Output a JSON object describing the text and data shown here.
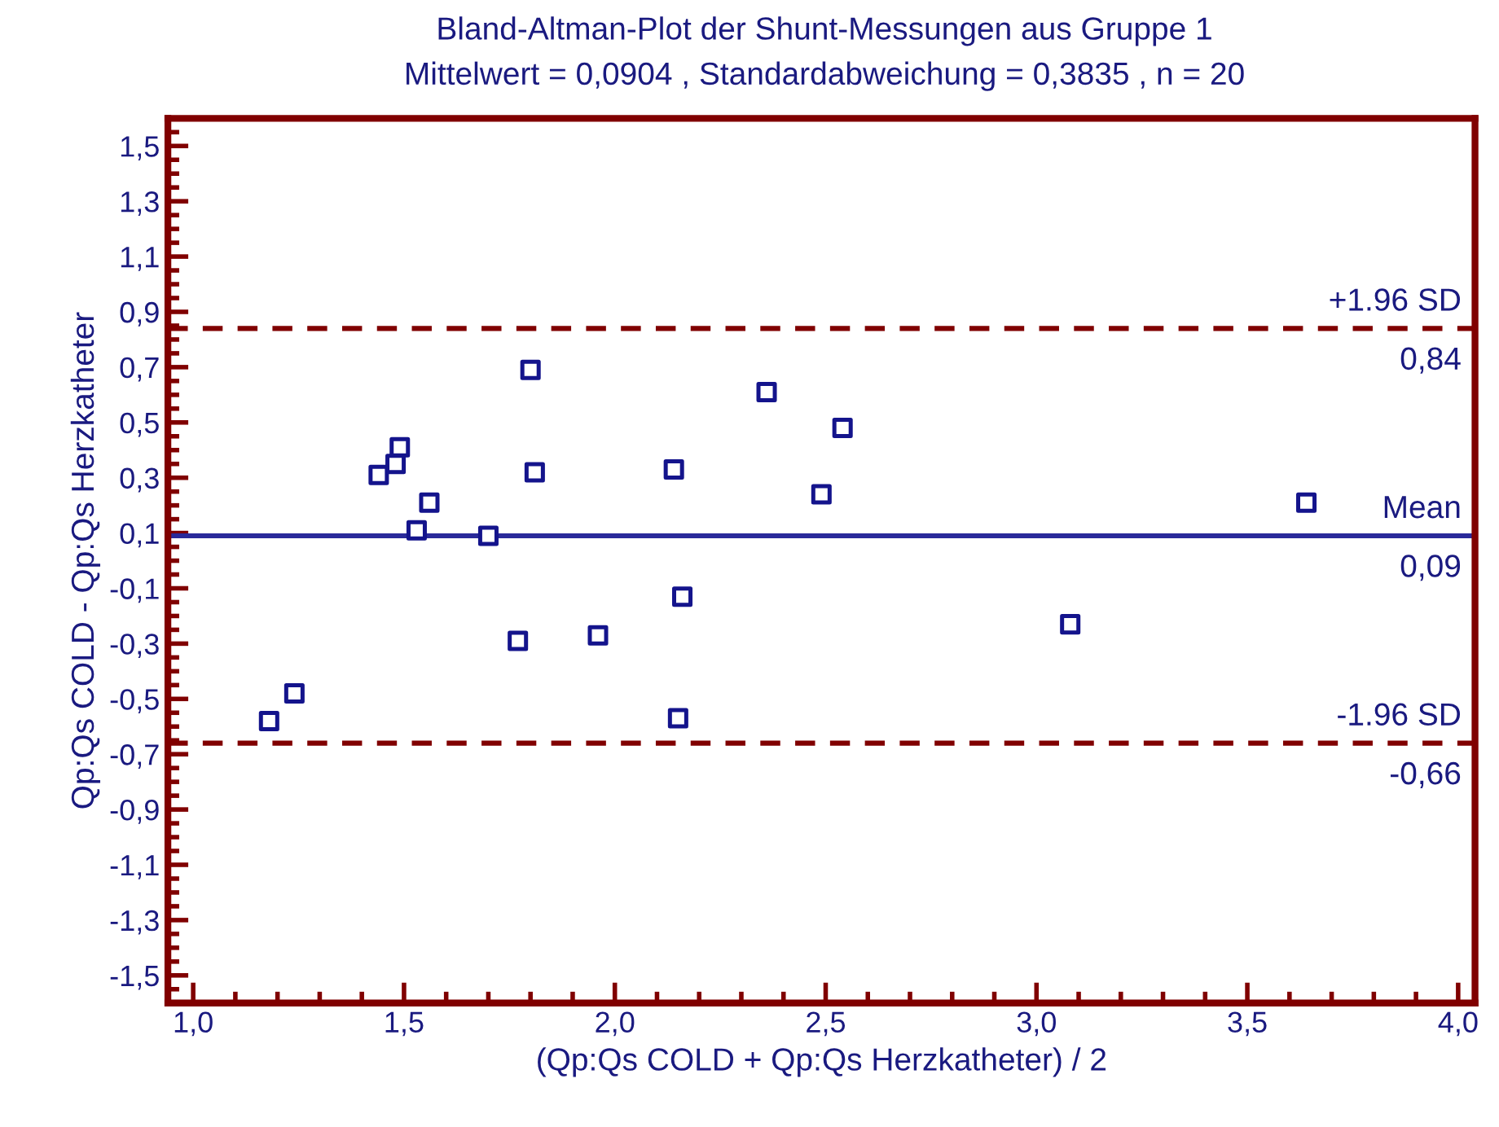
{
  "chart_data": {
    "type": "scatter",
    "title": "Bland-Altman-Plot der Shunt-Messungen aus Gruppe 1",
    "subtitle": "Mittelwert = 0,0904 , Standardabweichung = 0,3835 , n = 20",
    "xlabel": "(Qp:Qs COLD + Qp:Qs Herzkatheter) / 2",
    "ylabel": "Qp:Qs COLD - Qp:Qs Herzkatheter",
    "x": [
      1.18,
      1.24,
      1.44,
      1.48,
      1.49,
      1.56,
      1.53,
      1.7,
      1.8,
      1.81,
      1.77,
      1.96,
      2.14,
      2.16,
      2.15,
      2.36,
      2.49,
      2.54,
      3.08,
      3.64
    ],
    "series": [
      {
        "color": "#14148c",
        "values": [
          -0.58,
          -0.48,
          0.31,
          0.35,
          0.41,
          0.21,
          0.11,
          0.09,
          0.69,
          0.32,
          -0.29,
          -0.27,
          0.33,
          -0.13,
          -0.57,
          0.61,
          0.24,
          0.48,
          -0.23,
          0.21
        ]
      }
    ],
    "marker": "square",
    "xlim": [
      0.94,
      4.04
    ],
    "ylim": [
      -1.6,
      1.6
    ],
    "xticks": [
      {
        "value": 1.0,
        "label": "1,0"
      },
      {
        "value": 1.5,
        "label": "1,5"
      },
      {
        "value": 2.0,
        "label": "2,0"
      },
      {
        "value": 2.5,
        "label": "2,5"
      },
      {
        "value": 3.0,
        "label": "3,0"
      },
      {
        "value": 3.5,
        "label": "3,5"
      },
      {
        "value": 4.0,
        "label": "4,0"
      }
    ],
    "yticks": [
      {
        "value": -1.5,
        "label": "-1,5"
      },
      {
        "value": -1.3,
        "label": "-1,3"
      },
      {
        "value": -1.1,
        "label": "-1,1"
      },
      {
        "value": -0.9,
        "label": "-0,9"
      },
      {
        "value": -0.7,
        "label": "-0,7"
      },
      {
        "value": -0.5,
        "label": "-0,5"
      },
      {
        "value": -0.3,
        "label": "-0,3"
      },
      {
        "value": -0.1,
        "label": "-0,1"
      },
      {
        "value": 0.1,
        "label": "0,1"
      },
      {
        "value": 0.3,
        "label": "0,3"
      },
      {
        "value": 0.5,
        "label": "0,5"
      },
      {
        "value": 0.7,
        "label": "0,7"
      },
      {
        "value": 0.9,
        "label": "0,9"
      },
      {
        "value": 1.1,
        "label": "1,1"
      },
      {
        "value": 1.3,
        "label": "1,3"
      },
      {
        "value": 1.5,
        "label": "1,5"
      }
    ],
    "grid": false,
    "legend": false,
    "ref_lines": [
      {
        "axis": "y",
        "value": 0.84,
        "label": "+1.96 SD",
        "color": "#800000",
        "line_style": "dashed"
      },
      {
        "axis": "y",
        "value": 0.09,
        "label": "Mean",
        "color": "#2a2a9a",
        "line_style": "solid"
      },
      {
        "axis": "y",
        "value": -0.66,
        "label": "-1.96 SD",
        "color": "#800000",
        "line_style": "dashed"
      }
    ],
    "annotations": [
      {
        "text": "0,84",
        "y": 0.84
      },
      {
        "text": "0,09",
        "y": 0.09
      },
      {
        "text": "-0,66",
        "y": -0.66
      }
    ]
  }
}
